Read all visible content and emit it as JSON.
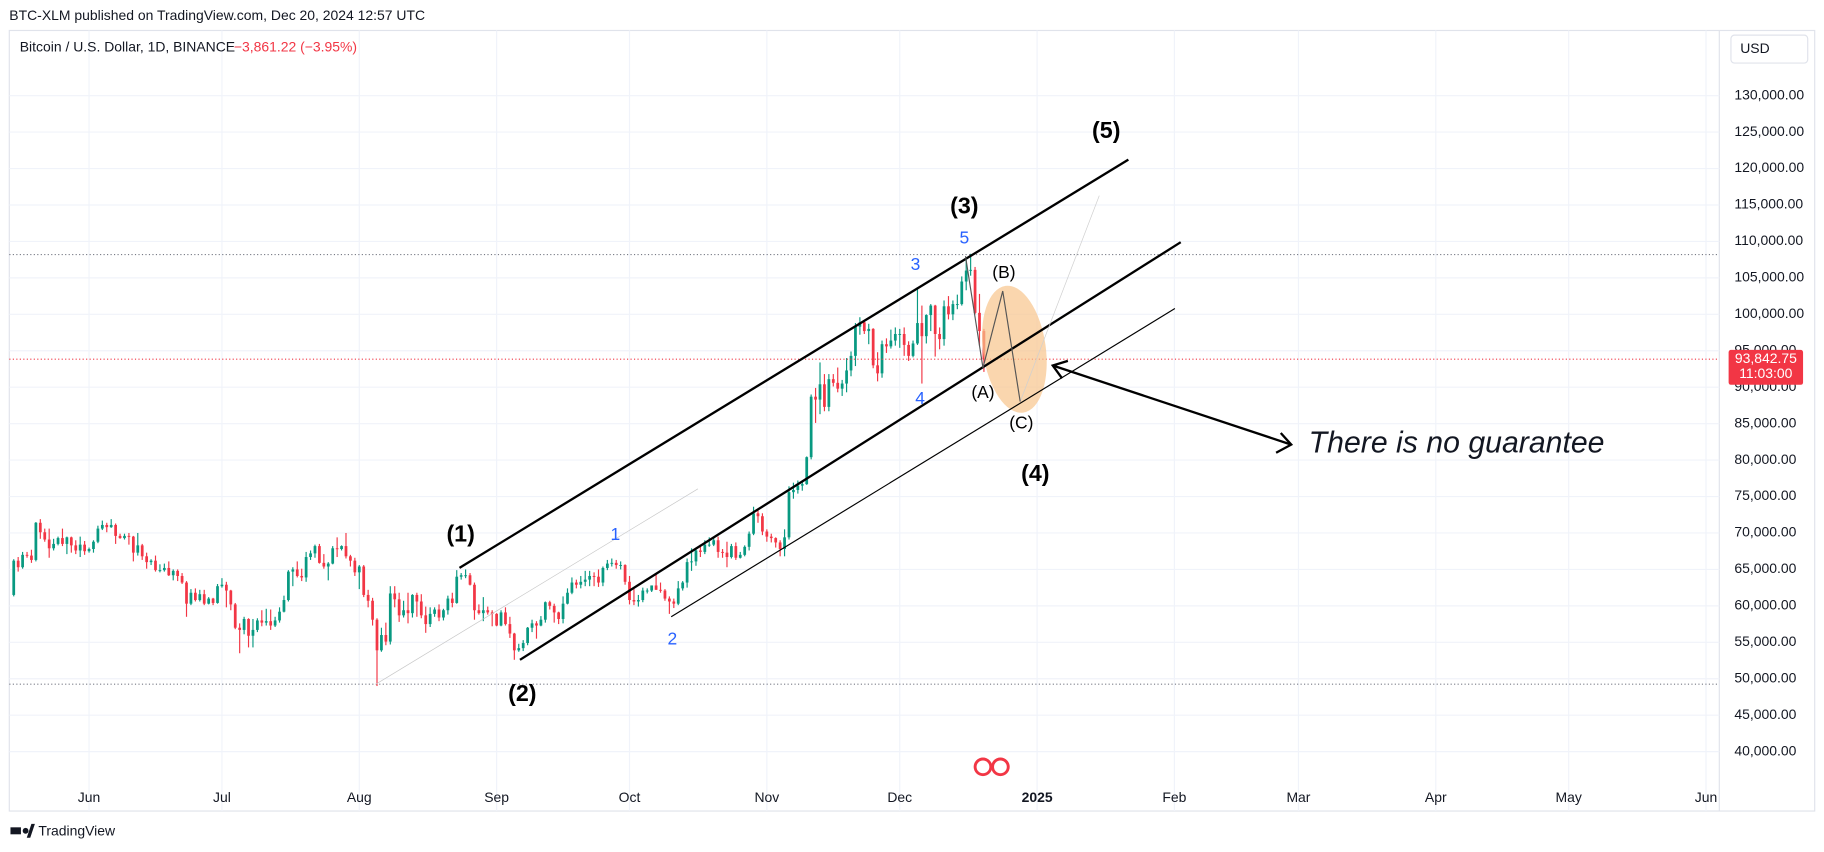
{
  "header": {
    "publisher": "BTC-XLM published on TradingView.com, Dec 20, 2024 12:57 UTC",
    "footer": "TradingView"
  },
  "chart_data": {
    "type": "candlestick",
    "title": "Bitcoin / U.S. Dollar, 1D, BINANCE",
    "change": "−3,861.22 (−3.95%)",
    "currency": "USD",
    "up_color": "#089981",
    "down_color": "#f23645",
    "candles": [
      [
        61500,
        66400,
        61300,
        66200
      ],
      [
        66200,
        66700,
        64700,
        65300
      ],
      [
        65300,
        67400,
        65100,
        67000
      ],
      [
        67000,
        67400,
        66600,
        66900
      ],
      [
        66900,
        67700,
        65900,
        66300
      ],
      [
        66300,
        71500,
        66100,
        71400
      ],
      [
        71400,
        71900,
        69200,
        70100
      ],
      [
        70100,
        70600,
        68800,
        69100
      ],
      [
        69100,
        70600,
        66600,
        67900
      ],
      [
        67900,
        69200,
        67600,
        68500
      ],
      [
        68500,
        69500,
        68300,
        69300
      ],
      [
        69300,
        70600,
        68200,
        68500
      ],
      [
        68500,
        69500,
        67100,
        69400
      ],
      [
        69400,
        69500,
        67300,
        68300
      ],
      [
        68300,
        69000,
        67100,
        67600
      ],
      [
        67600,
        69500,
        66700,
        68400
      ],
      [
        68400,
        68900,
        67000,
        67500
      ],
      [
        67500,
        68000,
        67300,
        67800
      ],
      [
        67800,
        69000,
        67300,
        68800
      ],
      [
        68800,
        71000,
        68600,
        70600
      ],
      [
        70600,
        71700,
        70400,
        71100
      ],
      [
        71100,
        71400,
        70100,
        70800
      ],
      [
        70800,
        71900,
        70700,
        71100
      ],
      [
        71100,
        71300,
        68500,
        69600
      ],
      [
        69600,
        69900,
        69200,
        69300
      ],
      [
        69300,
        69900,
        69100,
        69600
      ],
      [
        69600,
        70000,
        68400,
        69500
      ],
      [
        69500,
        69600,
        66100,
        67300
      ],
      [
        67300,
        70000,
        66900,
        68300
      ],
      [
        68300,
        68500,
        66300,
        66800
      ],
      [
        66800,
        67300,
        65100,
        66000
      ],
      [
        66000,
        66400,
        65600,
        66200
      ],
      [
        66200,
        66900,
        64700,
        64900
      ],
      [
        64900,
        65700,
        64600,
        64900
      ],
      [
        64900,
        65800,
        64700,
        65200
      ],
      [
        65200,
        66100,
        64100,
        64200
      ],
      [
        64200,
        65000,
        63500,
        64800
      ],
      [
        64800,
        65000,
        63400,
        64100
      ],
      [
        64100,
        64500,
        63000,
        63200
      ],
      [
        63200,
        63400,
        58500,
        60300
      ],
      [
        60300,
        62300,
        60100,
        61800
      ],
      [
        61800,
        62400,
        60600,
        60800
      ],
      [
        60800,
        62200,
        60600,
        61600
      ],
      [
        61600,
        62200,
        60100,
        60300
      ],
      [
        60300,
        61200,
        60200,
        61000
      ],
      [
        61000,
        61100,
        60100,
        60400
      ],
      [
        60400,
        63000,
        60300,
        62700
      ],
      [
        62700,
        63800,
        62500,
        62900
      ],
      [
        62900,
        63300,
        59800,
        62100
      ],
      [
        62100,
        62200,
        59400,
        60200
      ],
      [
        60200,
        60400,
        56800,
        57000
      ],
      [
        57000,
        57600,
        53500,
        56700
      ],
      [
        56700,
        58500,
        56100,
        58200
      ],
      [
        58200,
        58300,
        54300,
        55900
      ],
      [
        55900,
        58200,
        54300,
        56700
      ],
      [
        56700,
        58300,
        56400,
        58000
      ],
      [
        58000,
        59400,
        57200,
        57700
      ],
      [
        57700,
        59600,
        57300,
        57900
      ],
      [
        57900,
        59500,
        56700,
        57300
      ],
      [
        57300,
        58500,
        57100,
        58000
      ],
      [
        58000,
        59800,
        57700,
        59200
      ],
      [
        59200,
        61400,
        59100,
        60800
      ],
      [
        60800,
        64900,
        60600,
        64700
      ],
      [
        64700,
        65300,
        62700,
        65000
      ],
      [
        65000,
        66100,
        63900,
        64100
      ],
      [
        64100,
        65100,
        63400,
        63900
      ],
      [
        63900,
        67400,
        63300,
        66700
      ],
      [
        66700,
        67600,
        66300,
        67200
      ],
      [
        67200,
        68400,
        66600,
        68200
      ],
      [
        68200,
        68500,
        65800,
        65900
      ],
      [
        65900,
        67100,
        65100,
        65400
      ],
      [
        65400,
        66000,
        63500,
        65800
      ],
      [
        65800,
        68200,
        65700,
        67900
      ],
      [
        67900,
        69400,
        66700,
        67800
      ],
      [
        67800,
        68300,
        67600,
        68200
      ],
      [
        68200,
        70000,
        66500,
        66800
      ],
      [
        66800,
        67000,
        65400,
        66200
      ],
      [
        66200,
        66600,
        64100,
        64600
      ],
      [
        64600,
        65600,
        62300,
        65400
      ],
      [
        65400,
        65600,
        61200,
        61500
      ],
      [
        61500,
        62200,
        59800,
        60700
      ],
      [
        60700,
        61100,
        57300,
        58100
      ],
      [
        58100,
        58300,
        49000,
        53900
      ],
      [
        53900,
        57000,
        53700,
        56000
      ],
      [
        56000,
        57700,
        54600,
        55100
      ],
      [
        55100,
        62700,
        54700,
        61700
      ],
      [
        61700,
        62700,
        59800,
        60900
      ],
      [
        60900,
        61800,
        57800,
        58700
      ],
      [
        58700,
        60700,
        58400,
        59400
      ],
      [
        59400,
        61800,
        57600,
        59000
      ],
      [
        59000,
        61600,
        58400,
        61500
      ],
      [
        61500,
        61800,
        58500,
        60600
      ],
      [
        60600,
        61600,
        58300,
        58700
      ],
      [
        58700,
        59900,
        56300,
        57500
      ],
      [
        57500,
        59800,
        57100,
        58900
      ],
      [
        58900,
        59800,
        58500,
        59500
      ],
      [
        59500,
        60200,
        57900,
        58400
      ],
      [
        58400,
        59600,
        58000,
        59400
      ],
      [
        59400,
        61400,
        58800,
        61000
      ],
      [
        61000,
        61800,
        59800,
        60400
      ],
      [
        60400,
        64900,
        60300,
        64000
      ],
      [
        64000,
        64500,
        63600,
        64200
      ],
      [
        64200,
        65000,
        63800,
        64200
      ],
      [
        64200,
        64500,
        62800,
        62900
      ],
      [
        62900,
        63200,
        58100,
        59400
      ],
      [
        59400,
        60200,
        58800,
        59000
      ],
      [
        59000,
        61200,
        57900,
        59400
      ],
      [
        59400,
        59900,
        58800,
        59100
      ],
      [
        59100,
        59400,
        57200,
        58900
      ],
      [
        58900,
        59000,
        57200,
        57300
      ],
      [
        57300,
        59400,
        57200,
        59100
      ],
      [
        59100,
        59800,
        57300,
        57500
      ],
      [
        57500,
        58500,
        55600,
        56200
      ],
      [
        56200,
        56300,
        52600,
        53900
      ],
      [
        53900,
        54800,
        53700,
        54200
      ],
      [
        54200,
        55300,
        53800,
        54900
      ],
      [
        54900,
        57100,
        54600,
        57000
      ],
      [
        57000,
        58100,
        56400,
        57600
      ],
      [
        57600,
        57900,
        55500,
        57300
      ],
      [
        57300,
        58600,
        57200,
        58100
      ],
      [
        58100,
        60600,
        57700,
        60500
      ],
      [
        60500,
        60700,
        59500,
        60000
      ],
      [
        60000,
        60300,
        57700,
        59100
      ],
      [
        59100,
        59200,
        57500,
        58200
      ],
      [
        58200,
        61300,
        57600,
        60300
      ],
      [
        60300,
        62400,
        60200,
        61800
      ],
      [
        61800,
        63900,
        61600,
        63200
      ],
      [
        63200,
        63600,
        62400,
        62900
      ],
      [
        62900,
        64100,
        62400,
        63300
      ],
      [
        63300,
        64800,
        62700,
        63600
      ],
      [
        63600,
        64800,
        62700,
        64100
      ],
      [
        64100,
        64600,
        62700,
        64000
      ],
      [
        64000,
        65000,
        62600,
        63200
      ],
      [
        63200,
        65400,
        62700,
        65200
      ],
      [
        65200,
        66300,
        64900,
        65800
      ],
      [
        65800,
        66500,
        65400,
        65900
      ],
      [
        65900,
        66300,
        65100,
        65600
      ],
      [
        65600,
        66100,
        65000,
        65600
      ],
      [
        65600,
        65700,
        62900,
        63300
      ],
      [
        63300,
        64100,
        60200,
        60800
      ],
      [
        60800,
        62300,
        60100,
        60600
      ],
      [
        60600,
        61500,
        59900,
        60800
      ],
      [
        60800,
        62500,
        60500,
        62100
      ],
      [
        62100,
        62400,
        61700,
        62100
      ],
      [
        62100,
        62800,
        61900,
        62800
      ],
      [
        62800,
        64500,
        62200,
        62200
      ],
      [
        62200,
        63200,
        61800,
        62100
      ],
      [
        62100,
        62300,
        60700,
        61000
      ],
      [
        61000,
        61300,
        58900,
        60600
      ],
      [
        60600,
        61000,
        59700,
        60300
      ],
      [
        60300,
        63400,
        60100,
        62400
      ],
      [
        62400,
        63400,
        62100,
        63200
      ],
      [
        63200,
        66500,
        62500,
        66000
      ],
      [
        66000,
        67900,
        64800,
        66100
      ],
      [
        66100,
        68000,
        65500,
        67600
      ],
      [
        67600,
        68400,
        66700,
        67400
      ],
      [
        67400,
        69000,
        67100,
        68400
      ],
      [
        68400,
        69400,
        68100,
        68400
      ],
      [
        68400,
        69500,
        68200,
        69000
      ],
      [
        69000,
        69500,
        66600,
        67400
      ],
      [
        67400,
        67800,
        66600,
        67300
      ],
      [
        67300,
        68800,
        65300,
        66700
      ],
      [
        66700,
        68500,
        66500,
        68200
      ],
      [
        68200,
        68700,
        66300,
        66600
      ],
      [
        66600,
        67400,
        66500,
        67000
      ],
      [
        67000,
        68300,
        66800,
        68100
      ],
      [
        68100,
        70200,
        67600,
        69900
      ],
      [
        69900,
        73600,
        69700,
        72700
      ],
      [
        72700,
        73200,
        71400,
        72300
      ],
      [
        72300,
        72700,
        69700,
        70200
      ],
      [
        70200,
        70500,
        68800,
        69500
      ],
      [
        69500,
        69900,
        68700,
        69300
      ],
      [
        69300,
        69400,
        68000,
        68700
      ],
      [
        68700,
        69000,
        66800,
        67800
      ],
      [
        67800,
        70500,
        66800,
        69400
      ],
      [
        69400,
        76400,
        69100,
        75600
      ],
      [
        75600,
        76900,
        74700,
        75900
      ],
      [
        75900,
        77200,
        75400,
        76500
      ],
      [
        76500,
        77000,
        75800,
        76700
      ],
      [
        76700,
        80500,
        76600,
        80400
      ],
      [
        80400,
        89000,
        80100,
        88700
      ],
      [
        88700,
        89900,
        85100,
        88300
      ],
      [
        88300,
        93400,
        86300,
        90400
      ],
      [
        90400,
        91800,
        86700,
        87300
      ],
      [
        87300,
        91800,
        86700,
        91100
      ],
      [
        91100,
        91800,
        90100,
        90600
      ],
      [
        90600,
        92700,
        89300,
        89800
      ],
      [
        89800,
        91000,
        88800,
        90500
      ],
      [
        90500,
        94000,
        89300,
        92300
      ],
      [
        92300,
        94900,
        91500,
        94300
      ],
      [
        94300,
        98800,
        92900,
        98300
      ],
      [
        98300,
        99600,
        97200,
        98900
      ],
      [
        98900,
        99000,
        97300,
        97700
      ],
      [
        97700,
        98700,
        95900,
        98000
      ],
      [
        98000,
        98100,
        92600,
        93000
      ],
      [
        93000,
        94800,
        90800,
        91900
      ],
      [
        91900,
        96400,
        91300,
        95900
      ],
      [
        95900,
        96700,
        94700,
        95600
      ],
      [
        95600,
        97900,
        95300,
        96400
      ],
      [
        96400,
        98200,
        95700,
        97300
      ],
      [
        97300,
        98000,
        95400,
        97300
      ],
      [
        97300,
        98200,
        94300,
        95800
      ],
      [
        95800,
        96300,
        93600,
        94300
      ],
      [
        94300,
        96400,
        94100,
        96000
      ],
      [
        96000,
        103700,
        95800,
        98800
      ],
      [
        98800,
        101200,
        90500,
        97000
      ],
      [
        97000,
        100000,
        96000,
        99900
      ],
      [
        99900,
        101400,
        97700,
        101200
      ],
      [
        101200,
        101300,
        94200,
        97300
      ],
      [
        97300,
        98200,
        95200,
        96600
      ],
      [
        96600,
        101900,
        95700,
        101100
      ],
      [
        101100,
        102500,
        99300,
        100000
      ],
      [
        100000,
        101900,
        99200,
        101400
      ],
      [
        101400,
        102700,
        100700,
        101400
      ],
      [
        101400,
        105200,
        101200,
        104500
      ],
      [
        104500,
        107800,
        103300,
        106000
      ],
      [
        106000,
        108300,
        105300,
        106100
      ],
      [
        106100,
        106500,
        100000,
        100200
      ],
      [
        100200,
        102800,
        95700,
        97704
      ],
      [
        97704,
        98000,
        92100,
        93842.75
      ]
    ],
    "xlim": [
      -1,
      385
    ],
    "xticks": [
      {
        "value": 17,
        "label": "Jun"
      },
      {
        "value": 47,
        "label": "Jul"
      },
      {
        "value": 78,
        "label": "Aug"
      },
      {
        "value": 109,
        "label": "Sep"
      },
      {
        "value": 139,
        "label": "Oct"
      },
      {
        "value": 170,
        "label": "Nov"
      },
      {
        "value": 200,
        "label": "Dec"
      },
      {
        "value": 231,
        "label": "2025"
      },
      {
        "value": 262,
        "label": "Feb"
      },
      {
        "value": 290,
        "label": "Mar"
      },
      {
        "value": 321,
        "label": "Apr"
      },
      {
        "value": 351,
        "label": "May"
      },
      {
        "value": 382,
        "label": "Jun"
      }
    ],
    "ylim": [
      31850,
      138940
    ],
    "yticks": [
      {
        "value": 40000,
        "label": "40,000.00"
      },
      {
        "value": 45000,
        "label": "45,000.00"
      },
      {
        "value": 50000,
        "label": "50,000.00"
      },
      {
        "value": 55000,
        "label": "55,000.00"
      },
      {
        "value": 60000,
        "label": "60,000.00"
      },
      {
        "value": 65000,
        "label": "65,000.00"
      },
      {
        "value": 70000,
        "label": "70,000.00"
      },
      {
        "value": 75000,
        "label": "75,000.00"
      },
      {
        "value": 80000,
        "label": "80,000.00"
      },
      {
        "value": 85000,
        "label": "85,000.00"
      },
      {
        "value": 90000,
        "label": "90,000.00"
      },
      {
        "value": 95000,
        "label": "95,000.00"
      },
      {
        "value": 100000,
        "label": "100,000.00"
      },
      {
        "value": 105000,
        "label": "105,000.00"
      },
      {
        "value": 110000,
        "label": "110,000.00"
      },
      {
        "value": 115000,
        "label": "115,000.00"
      },
      {
        "value": 120000,
        "label": "120,000.00"
      },
      {
        "value": 125000,
        "label": "125,000.00"
      },
      {
        "value": 130000,
        "label": "130,000.00"
      }
    ],
    "grid": true,
    "last_price": {
      "value": 93842.75,
      "label": "93,842.75"
    },
    "countdown": "11:03:00",
    "horizontal_lines": [
      108200,
      49250
    ],
    "annotations": [
      "(1)",
      "(2)",
      "(3)",
      "(4)",
      "(5)",
      "1",
      "2",
      "3",
      "4",
      "5",
      "(A)",
      "(B)",
      "(C)"
    ],
    "callout": "There is no guarantee"
  }
}
